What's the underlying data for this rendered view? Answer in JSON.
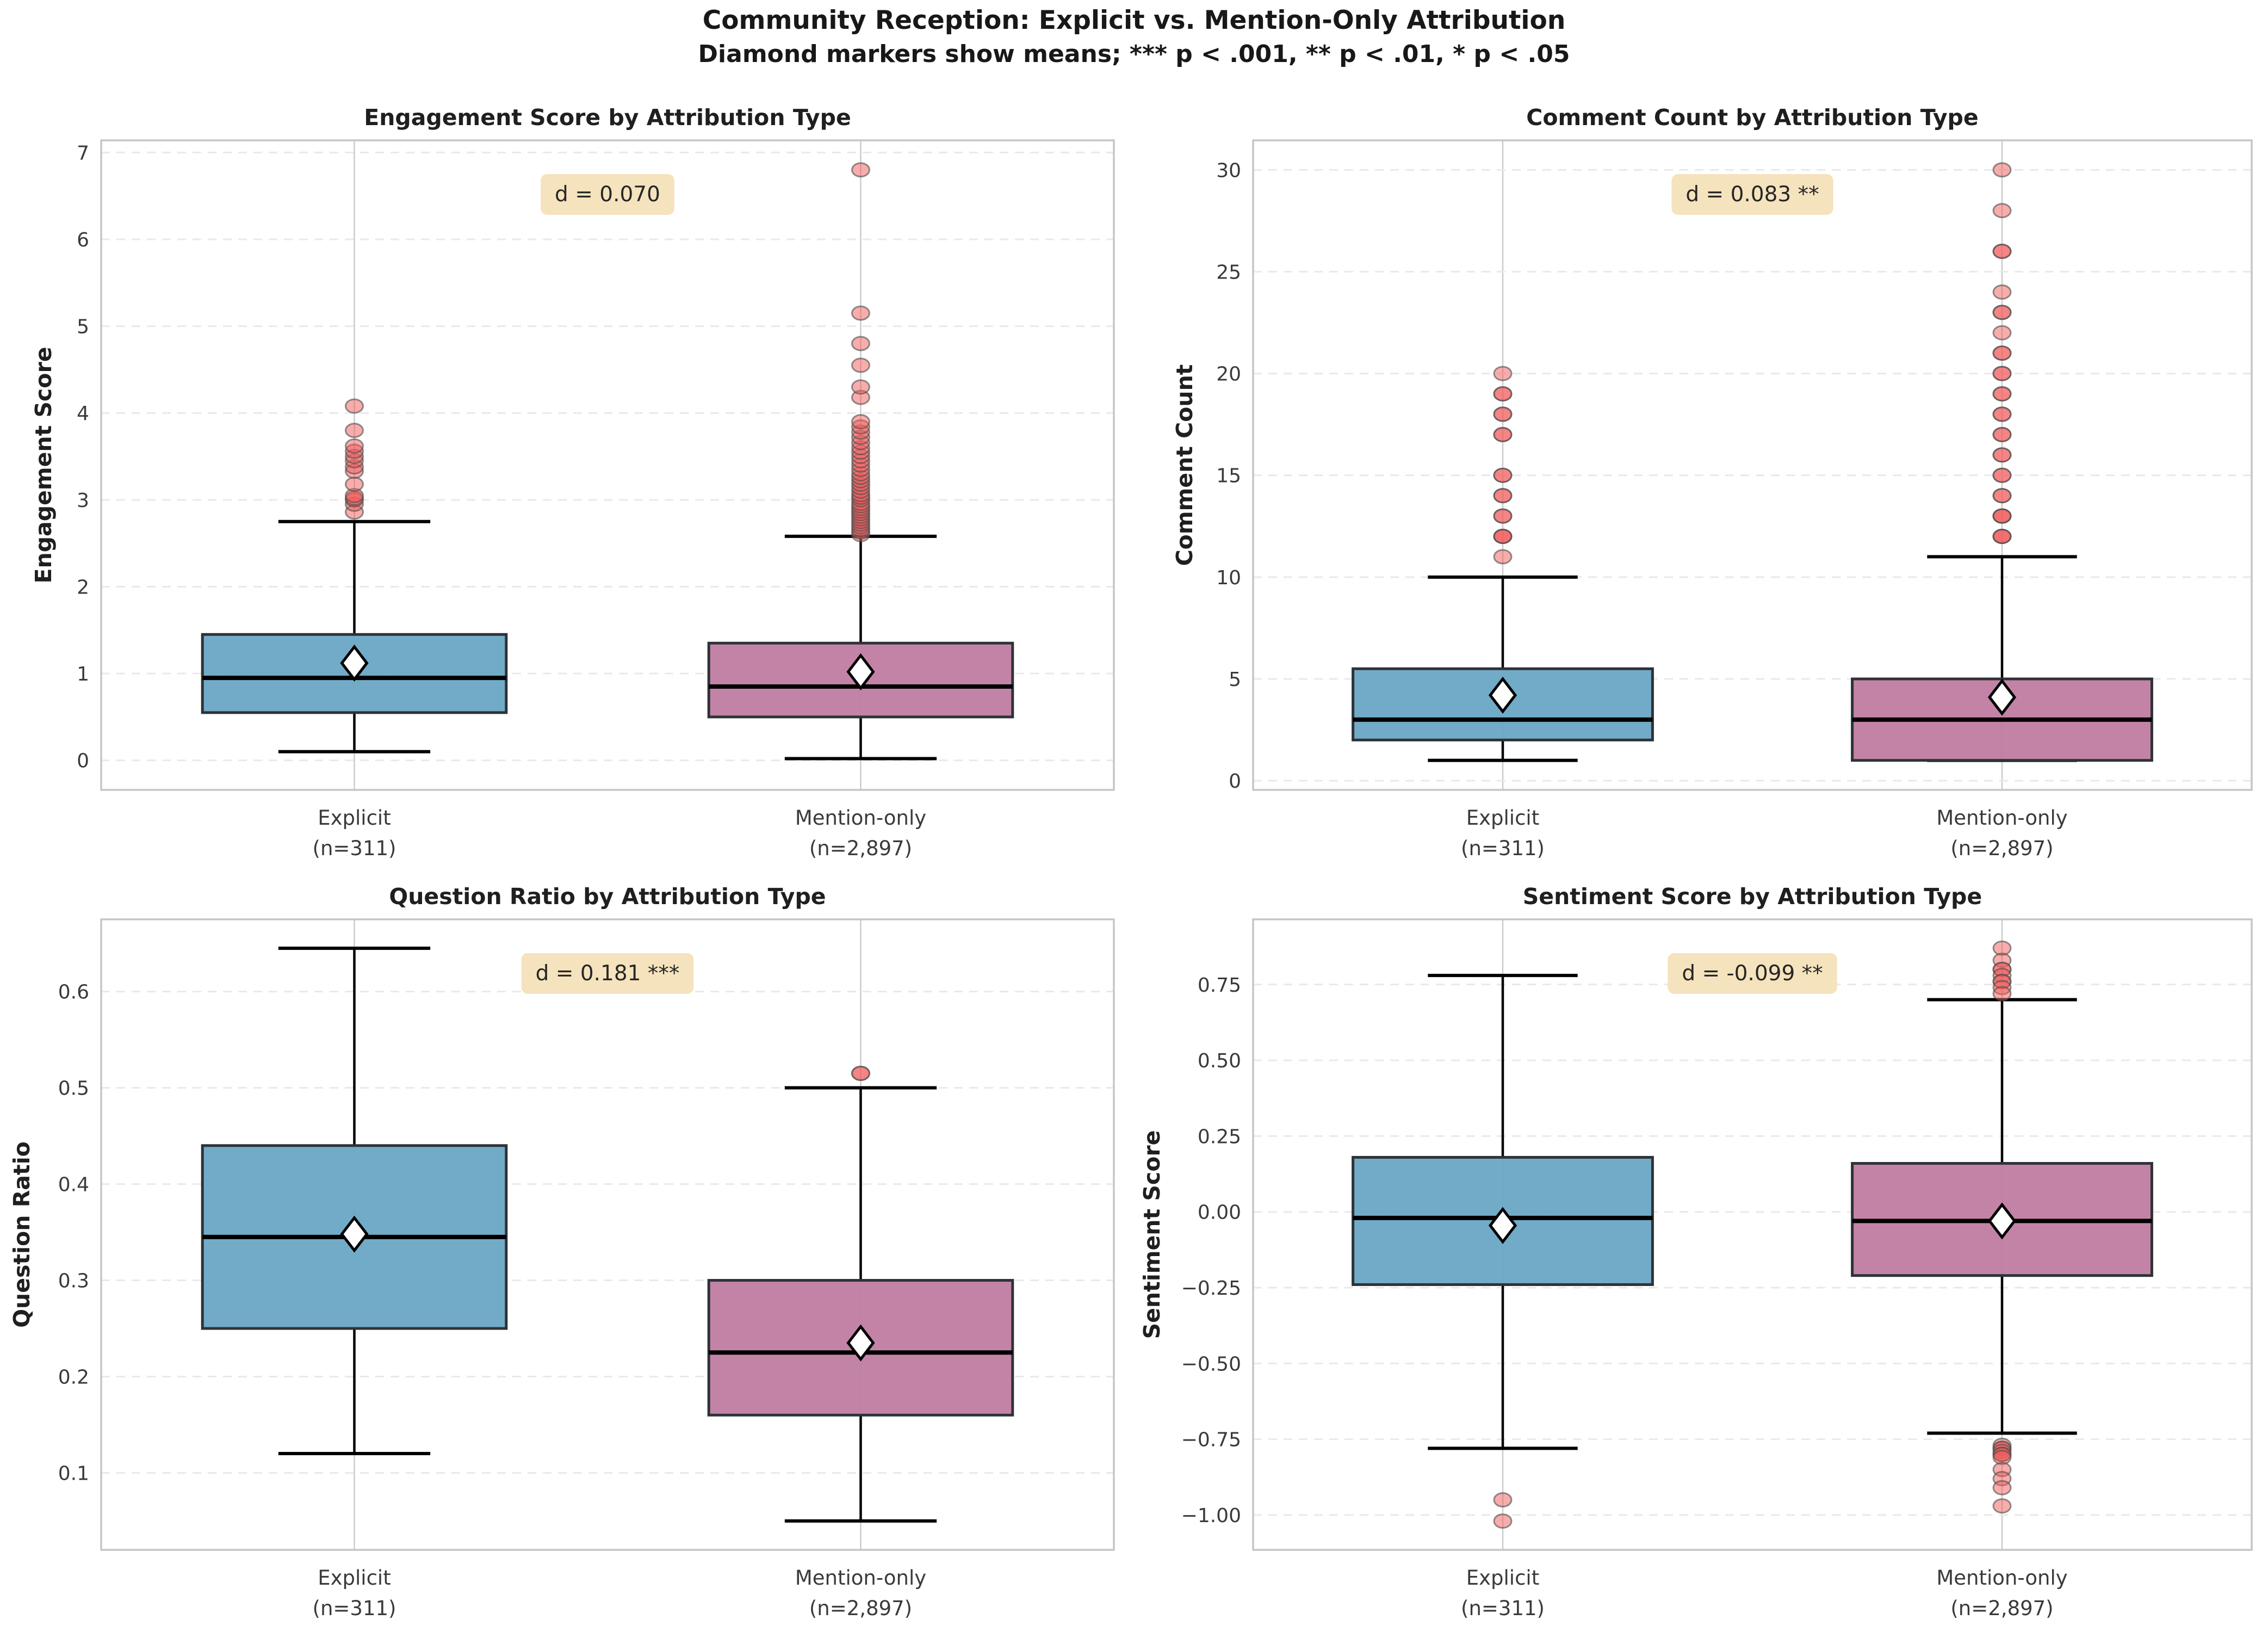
{
  "figure": {
    "title": "Community Reception: Explicit vs. Mention-Only Attribution",
    "subtitle": "Diamond markers show means; *** p < .001, ** p < .01, * p < .05"
  },
  "colors": {
    "explicit_box": "#69A7C4",
    "mention_box": "#C07CA2",
    "box_edge": "#2E3236",
    "median": "#000000",
    "whisker": "#000000",
    "mean_fill": "#ffffff",
    "mean_edge": "#000000",
    "outlier_fill": "#F25C5C",
    "outlier_edge": "#4D4D4D",
    "annotation_bg": "#F5E2BB",
    "annotation_text": "#262626",
    "grid_h": "#E9E9E9",
    "grid_v": "#CBCBCB",
    "frame": "#C6C6C6",
    "title_text": "#1F1F1F",
    "tick_text": "#3A3A3A"
  },
  "chart_data": [
    {
      "type": "box",
      "id": "engagement",
      "title": "Engagement Score by Attribution Type",
      "ylabel": "Engagement Score",
      "annotation": "d = 0.070",
      "ylim": [
        -0.34,
        7.14
      ],
      "yticks": [
        0,
        1,
        2,
        3,
        4,
        5,
        6,
        7
      ],
      "ytick_labels": [
        "0",
        "1",
        "2",
        "3",
        "4",
        "5",
        "6",
        "7"
      ],
      "categories": [
        "Explicit\n(n=311)",
        "Mention-only\n(n=2,897)"
      ],
      "series": [
        {
          "name": "Explicit",
          "whislo": 0.1,
          "q1": 0.55,
          "med": 0.95,
          "q3": 1.45,
          "whishi": 2.75,
          "mean": 1.12,
          "outliers": [
            2.86,
            2.95,
            3.0,
            3.02,
            3.05,
            3.18,
            3.33,
            3.38,
            3.45,
            3.5,
            3.56,
            3.62,
            3.8,
            4.08
          ]
        },
        {
          "name": "Mention-only",
          "whislo": 0.02,
          "q1": 0.5,
          "med": 0.85,
          "q3": 1.35,
          "whishi": 2.58,
          "mean": 1.02,
          "outliers": [
            2.6,
            2.63,
            2.66,
            2.69,
            2.72,
            2.75,
            2.78,
            2.81,
            2.84,
            2.87,
            2.9,
            2.93,
            2.96,
            3.0,
            3.03,
            3.06,
            3.1,
            3.14,
            3.18,
            3.22,
            3.26,
            3.3,
            3.35,
            3.4,
            3.45,
            3.5,
            3.55,
            3.6,
            3.66,
            3.72,
            3.78,
            3.84,
            3.9,
            4.18,
            4.3,
            4.55,
            4.8,
            5.15,
            6.8
          ]
        }
      ]
    },
    {
      "type": "box",
      "id": "comment-count",
      "title": "Comment Count by Attribution Type",
      "ylabel": "Comment Count",
      "annotation": "d = 0.083 **",
      "ylim": [
        -0.45,
        31.45
      ],
      "yticks": [
        0,
        5,
        10,
        15,
        20,
        25,
        30
      ],
      "ytick_labels": [
        "0",
        "5",
        "10",
        "15",
        "20",
        "25",
        "30"
      ],
      "categories": [
        "Explicit\n(n=311)",
        "Mention-only\n(n=2,897)"
      ],
      "series": [
        {
          "name": "Explicit",
          "whislo": 1,
          "q1": 2,
          "med": 3,
          "q3": 5.5,
          "whishi": 10,
          "mean": 4.2,
          "outliers": [
            11,
            12,
            12,
            12,
            13,
            13,
            14,
            14,
            15,
            15,
            17,
            17,
            18,
            18,
            19,
            19,
            20
          ]
        },
        {
          "name": "Mention-only",
          "whislo": 1,
          "q1": 1,
          "med": 3,
          "q3": 5,
          "whishi": 11,
          "mean": 4.1,
          "outliers": [
            12,
            12,
            12,
            13,
            13,
            13,
            14,
            14,
            15,
            15,
            16,
            16,
            17,
            17,
            18,
            18,
            19,
            19,
            20,
            20,
            21,
            21,
            22,
            23,
            23,
            24,
            26,
            26,
            28,
            30
          ]
        }
      ]
    },
    {
      "type": "box",
      "id": "question-ratio",
      "title": "Question Ratio by Attribution Type",
      "ylabel": "Question Ratio",
      "annotation": "d = 0.181 ***",
      "ylim": [
        0.02,
        0.675
      ],
      "yticks": [
        0.1,
        0.2,
        0.3,
        0.4,
        0.5,
        0.6
      ],
      "ytick_labels": [
        "0.1",
        "0.2",
        "0.3",
        "0.4",
        "0.5",
        "0.6"
      ],
      "categories": [
        "Explicit\n(n=311)",
        "Mention-only\n(n=2,897)"
      ],
      "series": [
        {
          "name": "Explicit",
          "whislo": 0.12,
          "q1": 0.25,
          "med": 0.345,
          "q3": 0.44,
          "whishi": 0.645,
          "mean": 0.348,
          "outliers": []
        },
        {
          "name": "Mention-only",
          "whislo": 0.05,
          "q1": 0.16,
          "med": 0.225,
          "q3": 0.3,
          "whishi": 0.5,
          "mean": 0.235,
          "outliers": [
            0.515,
            0.515
          ]
        }
      ]
    },
    {
      "type": "box",
      "id": "sentiment",
      "title": "Sentiment Score by Attribution Type",
      "ylabel": "Sentiment Score",
      "annotation": "d = -0.099 **",
      "ylim": [
        -1.115,
        0.965
      ],
      "yticks": [
        -1.0,
        -0.75,
        -0.5,
        -0.25,
        0.0,
        0.25,
        0.5,
        0.75
      ],
      "ytick_labels": [
        "−1.00",
        "−0.75",
        "−0.50",
        "−0.25",
        "0.00",
        "0.25",
        "0.50",
        "0.75"
      ],
      "categories": [
        "Explicit\n(n=311)",
        "Mention-only\n(n=2,897)"
      ],
      "series": [
        {
          "name": "Explicit",
          "whislo": -0.78,
          "q1": -0.24,
          "med": -0.02,
          "q3": 0.18,
          "whishi": 0.78,
          "mean": -0.045,
          "outliers": [
            -0.95,
            -1.02
          ]
        },
        {
          "name": "Mention-only",
          "whislo": -0.73,
          "q1": -0.21,
          "med": -0.03,
          "q3": 0.16,
          "whishi": 0.7,
          "mean": -0.03,
          "outliers": [
            0.87,
            0.83,
            0.8,
            0.8,
            0.78,
            0.76,
            0.76,
            0.74,
            0.72,
            -0.77,
            -0.78,
            -0.78,
            -0.79,
            -0.8,
            -0.8,
            -0.81,
            -0.85,
            -0.88,
            -0.91,
            -0.97
          ]
        }
      ]
    }
  ]
}
